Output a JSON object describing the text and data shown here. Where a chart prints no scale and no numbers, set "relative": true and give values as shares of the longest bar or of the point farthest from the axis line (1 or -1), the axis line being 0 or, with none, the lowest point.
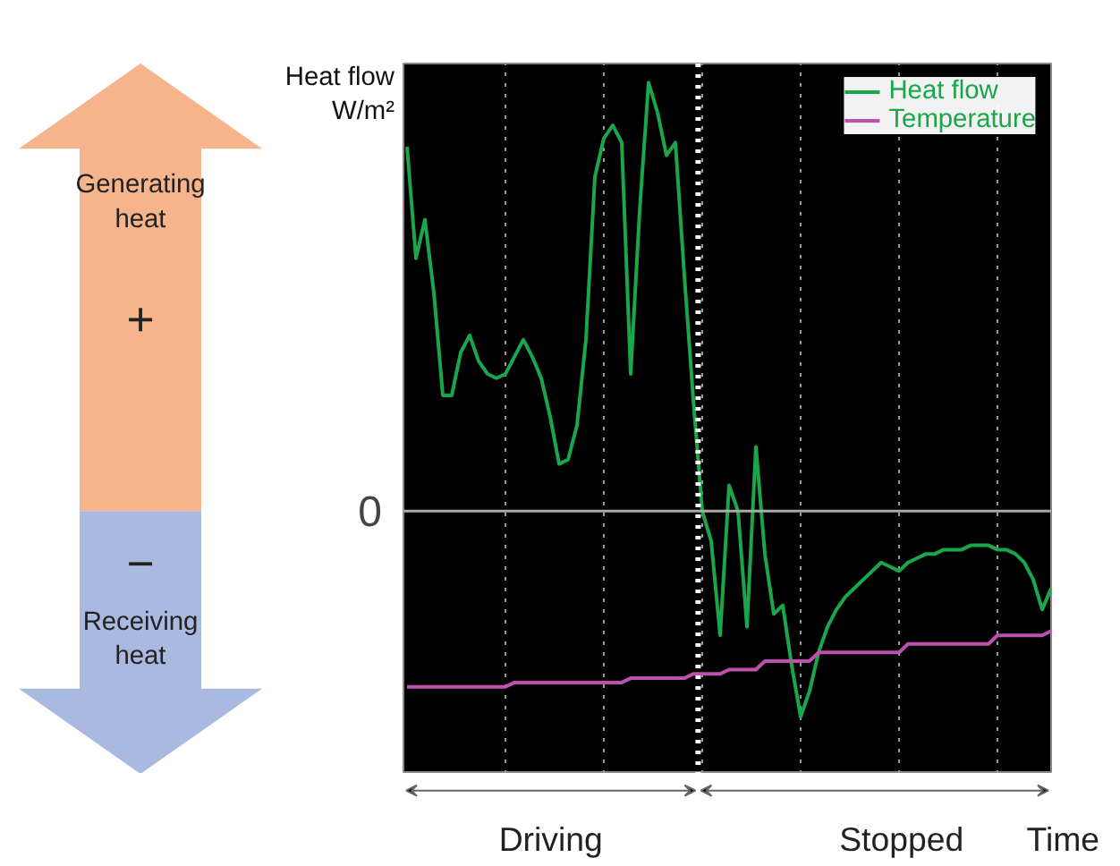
{
  "chart_data": {
    "type": "line",
    "relative": true,
    "ylabel": "Heat flow\nW/m²",
    "xlabel": "Time",
    "categories": [
      null,
      null,
      null,
      null,
      null,
      null,
      null,
      null,
      null,
      null,
      null,
      null,
      null,
      null,
      null,
      null,
      null,
      null,
      null,
      null,
      null,
      null,
      null,
      null,
      null,
      null,
      null,
      null,
      null,
      null,
      null,
      null,
      null,
      null,
      null,
      null,
      null,
      null,
      null,
      null,
      null,
      null,
      null,
      null,
      null,
      null,
      null,
      null,
      null,
      null,
      null,
      null,
      null,
      null,
      null,
      null,
      null,
      null,
      null,
      null,
      null,
      null,
      null,
      null,
      null,
      null,
      null,
      null,
      null,
      null,
      null,
      null,
      null
    ],
    "grid": "x",
    "legend": "top right",
    "line_style": "solid",
    "marker": "none",
    "ref_lines": [
      {
        "axis": "y",
        "value": 0,
        "label": "0",
        "color": "#aaaaaa"
      }
    ],
    "annotations": [
      "Generating heat",
      "+",
      "−",
      "Receiving heat",
      "Driving",
      "Stopped"
    ],
    "series": [
      {
        "name": "Heat flow",
        "color": "#1aa64a",
        "values": [
          0.85,
          0.59,
          0.68,
          0.51,
          0.27,
          0.27,
          0.37,
          0.41,
          0.35,
          0.32,
          0.31,
          0.32,
          0.36,
          0.4,
          0.36,
          0.31,
          0.22,
          0.11,
          0.12,
          0.2,
          0.4,
          0.78,
          0.87,
          0.9,
          0.86,
          0.32,
          0.7,
          1.0,
          0.93,
          0.83,
          0.86,
          0.55,
          0.26,
          0,
          -0.07,
          -0.29,
          0.06,
          0,
          -0.27,
          0.15,
          -0.1,
          -0.24,
          -0.22,
          -0.36,
          -0.48,
          -0.42,
          -0.33,
          -0.27,
          -0.23,
          -0.2,
          -0.18,
          -0.16,
          -0.14,
          -0.12,
          -0.13,
          -0.14,
          -0.12,
          -0.11,
          -0.1,
          -0.1,
          -0.09,
          -0.09,
          -0.09,
          -0.08,
          -0.08,
          -0.08,
          -0.09,
          -0.09,
          -0.1,
          -0.12,
          -0.16,
          -0.23,
          -0.18
        ]
      },
      {
        "name": "Temperature",
        "color": "#c050b0",
        "values": [
          -0.41,
          -0.41,
          -0.41,
          -0.41,
          -0.41,
          -0.41,
          -0.41,
          -0.41,
          -0.41,
          -0.41,
          -0.41,
          -0.41,
          -0.4,
          -0.4,
          -0.4,
          -0.4,
          -0.4,
          -0.4,
          -0.4,
          -0.4,
          -0.4,
          -0.4,
          -0.4,
          -0.4,
          -0.4,
          -0.39,
          -0.39,
          -0.39,
          -0.39,
          -0.39,
          -0.39,
          -0.39,
          -0.38,
          -0.38,
          -0.38,
          -0.38,
          -0.37,
          -0.37,
          -0.37,
          -0.37,
          -0.35,
          -0.35,
          -0.35,
          -0.35,
          -0.35,
          -0.35,
          -0.33,
          -0.33,
          -0.33,
          -0.33,
          -0.33,
          -0.33,
          -0.33,
          -0.33,
          -0.33,
          -0.33,
          -0.31,
          -0.31,
          -0.31,
          -0.31,
          -0.31,
          -0.31,
          -0.31,
          -0.31,
          -0.31,
          -0.31,
          -0.29,
          -0.29,
          -0.29,
          -0.29,
          -0.29,
          -0.29,
          -0.28
        ]
      }
    ]
  }
}
